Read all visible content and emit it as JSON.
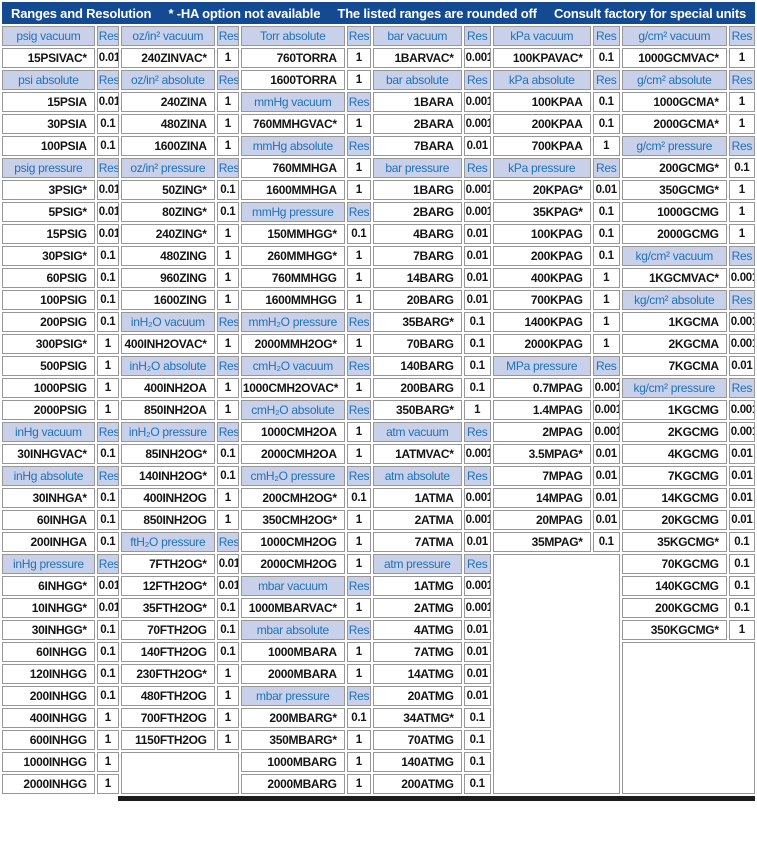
{
  "banner": {
    "items": [
      "Ranges and Resolution",
      "* -HA option not available",
      "The listed ranges are rounded off",
      "Consult factory for special units"
    ]
  },
  "colors": {
    "banner-bg": "#134a91",
    "banner-fg": "#ffffff",
    "hdr-bg": "#c9d0ea",
    "hdr-fg": "#1d72b8",
    "cell-fg": "#141414",
    "grid": "#979797"
  },
  "table": {
    "res_label": "Res",
    "row_count": 35,
    "columns": [
      {
        "group": "psi-inHg",
        "cells": [
          [
            "h",
            "psig vacuum"
          ],
          [
            "d",
            "15PSIVAC*",
            "0.01"
          ],
          [
            "h",
            "psi absolute"
          ],
          [
            "d",
            "15PSIA",
            "0.01"
          ],
          [
            "d",
            "30PSIA",
            "0.1"
          ],
          [
            "d",
            "100PSIA",
            "0.1"
          ],
          [
            "h",
            "psig pressure"
          ],
          [
            "d",
            "3PSIG*",
            "0.01"
          ],
          [
            "d",
            "5PSIG*",
            "0.01"
          ],
          [
            "d",
            "15PSIG",
            "0.01"
          ],
          [
            "d",
            "30PSIG*",
            "0.1"
          ],
          [
            "d",
            "60PSIG",
            "0.1"
          ],
          [
            "d",
            "100PSIG",
            "0.1"
          ],
          [
            "d",
            "200PSIG",
            "0.1"
          ],
          [
            "d",
            "300PSIG*",
            "1"
          ],
          [
            "d",
            "500PSIG",
            "1"
          ],
          [
            "d",
            "1000PSIG",
            "1"
          ],
          [
            "d",
            "2000PSIG",
            "1"
          ],
          [
            "h",
            "inHg vacuum"
          ],
          [
            "d",
            "30INHGVAC*",
            "0.1"
          ],
          [
            "h",
            "inHg absolute"
          ],
          [
            "d",
            "30INHGA*",
            "0.1"
          ],
          [
            "d",
            "60INHGA",
            "0.1"
          ],
          [
            "d",
            "200INHGA",
            "0.1"
          ],
          [
            "h",
            "inHg pressure"
          ],
          [
            "d",
            "6INHGG*",
            "0.01"
          ],
          [
            "d",
            "10INHGG*",
            "0.01"
          ],
          [
            "d",
            "30INHGG*",
            "0.1"
          ],
          [
            "d",
            "60INHGG",
            "0.1"
          ],
          [
            "d",
            "120INHGG",
            "0.1"
          ],
          [
            "d",
            "200INHGG",
            "0.1"
          ],
          [
            "d",
            "400INHGG",
            "1"
          ],
          [
            "d",
            "600INHGG",
            "1"
          ],
          [
            "d",
            "1000INHGG",
            "1"
          ],
          [
            "d",
            "2000INHGG",
            "1"
          ]
        ]
      },
      {
        "group": "ozin2-inH2O-ftH2O",
        "cells": [
          [
            "h",
            "oz/in² vacuum"
          ],
          [
            "d",
            "240ZINVAC*",
            "1"
          ],
          [
            "h",
            "oz/in² absolute"
          ],
          [
            "d",
            "240ZINA",
            "1"
          ],
          [
            "d",
            "480ZINA",
            "1"
          ],
          [
            "d",
            "1600ZINA",
            "1"
          ],
          [
            "h",
            "oz/in² pressure"
          ],
          [
            "d",
            "50ZING*",
            "0.1"
          ],
          [
            "d",
            "80ZING*",
            "0.1"
          ],
          [
            "d",
            "240ZING*",
            "1"
          ],
          [
            "d",
            "480ZING",
            "1"
          ],
          [
            "d",
            "960ZING",
            "1"
          ],
          [
            "d",
            "1600ZING",
            "1"
          ],
          [
            "h",
            "inH₂O vacuum"
          ],
          [
            "d",
            "400INH2OVAC*",
            "1"
          ],
          [
            "h",
            "inH₂O absolute"
          ],
          [
            "d",
            "400INH2OA",
            "1"
          ],
          [
            "d",
            "850INH2OA",
            "1"
          ],
          [
            "h",
            "inH₂O pressure"
          ],
          [
            "d",
            "85INH2OG*",
            "0.1"
          ],
          [
            "d",
            "140INH2OG*",
            "0.1"
          ],
          [
            "d",
            "400INH2OG",
            "1"
          ],
          [
            "d",
            "850INH2OG",
            "1"
          ],
          [
            "h",
            "ftH₂O pressure"
          ],
          [
            "d",
            "7FTH2OG*",
            "0.01"
          ],
          [
            "d",
            "12FTH2OG*",
            "0.01"
          ],
          [
            "d",
            "35FTH2OG*",
            "0.1"
          ],
          [
            "d",
            "70FTH2OG",
            "0.1"
          ],
          [
            "d",
            "140FTH2OG",
            "0.1"
          ],
          [
            "d",
            "230FTH2OG*",
            "1"
          ],
          [
            "d",
            "480FTH2OG",
            "1"
          ],
          [
            "d",
            "700FTH2OG",
            "1"
          ],
          [
            "d",
            "1150FTH2OG",
            "1"
          ]
        ]
      },
      {
        "group": "torr-mmHg-mmH2O-cmH2O-mbar",
        "cells": [
          [
            "h",
            "Torr absolute"
          ],
          [
            "d",
            "760TORRA",
            "1"
          ],
          [
            "d",
            "1600TORRA",
            "1"
          ],
          [
            "h",
            "mmHg vacuum"
          ],
          [
            "d",
            "760MMHGVAC*",
            "1"
          ],
          [
            "h",
            "mmHg absolute"
          ],
          [
            "d",
            "760MMHGA",
            "1"
          ],
          [
            "d",
            "1600MMHGA",
            "1"
          ],
          [
            "h",
            "mmHg pressure"
          ],
          [
            "d",
            "150MMHGG*",
            "0.1"
          ],
          [
            "d",
            "260MMHGG*",
            "1"
          ],
          [
            "d",
            "760MMHGG",
            "1"
          ],
          [
            "d",
            "1600MMHGG",
            "1"
          ],
          [
            "h",
            "mmH₂O pressure"
          ],
          [
            "d",
            "2000MMH2OG*",
            "1"
          ],
          [
            "h",
            "cmH₂O vacuum"
          ],
          [
            "d",
            "1000CMH2OVAC*",
            "1"
          ],
          [
            "h",
            "cmH₂O absolute"
          ],
          [
            "d",
            "1000CMH2OA",
            "1"
          ],
          [
            "d",
            "2000CMH2OA",
            "1"
          ],
          [
            "h",
            "cmH₂O pressure"
          ],
          [
            "d",
            "200CMH2OG*",
            "0.1"
          ],
          [
            "d",
            "350CMH2OG*",
            "1"
          ],
          [
            "d",
            "1000CMH2OG",
            "1"
          ],
          [
            "d",
            "2000CMH2OG",
            "1"
          ],
          [
            "h",
            "mbar vacuum"
          ],
          [
            "d",
            "1000MBARVAC*",
            "1"
          ],
          [
            "h",
            "mbar absolute"
          ],
          [
            "d",
            "1000MBARA",
            "1"
          ],
          [
            "d",
            "2000MBARA",
            "1"
          ],
          [
            "h",
            "mbar pressure"
          ],
          [
            "d",
            "200MBARG*",
            "0.1"
          ],
          [
            "d",
            "350MBARG*",
            "1"
          ],
          [
            "d",
            "1000MBARG",
            "1"
          ],
          [
            "d",
            "2000MBARG",
            "1"
          ]
        ]
      },
      {
        "group": "bar-atm",
        "cells": [
          [
            "h",
            "bar vacuum"
          ],
          [
            "d",
            "1BARVAC*",
            "0.001"
          ],
          [
            "h",
            "bar absolute"
          ],
          [
            "d",
            "1BARA",
            "0.001"
          ],
          [
            "d",
            "2BARA",
            "0.001"
          ],
          [
            "d",
            "7BARA",
            "0.01"
          ],
          [
            "h",
            "bar pressure"
          ],
          [
            "d",
            "1BARG",
            "0.001"
          ],
          [
            "d",
            "2BARG",
            "0.001"
          ],
          [
            "d",
            "4BARG",
            "0.01"
          ],
          [
            "d",
            "7BARG",
            "0.01"
          ],
          [
            "d",
            "14BARG",
            "0.01"
          ],
          [
            "d",
            "20BARG",
            "0.01"
          ],
          [
            "d",
            "35BARG*",
            "0.1"
          ],
          [
            "d",
            "70BARG",
            "0.1"
          ],
          [
            "d",
            "140BARG",
            "0.1"
          ],
          [
            "d",
            "200BARG",
            "0.1"
          ],
          [
            "d",
            "350BARG*",
            "1"
          ],
          [
            "h",
            "atm vacuum"
          ],
          [
            "d",
            "1ATMVAC*",
            "0.001"
          ],
          [
            "h",
            "atm absolute"
          ],
          [
            "d",
            "1ATMA",
            "0.001"
          ],
          [
            "d",
            "2ATMA",
            "0.001"
          ],
          [
            "d",
            "7ATMA",
            "0.01"
          ],
          [
            "h",
            "atm pressure"
          ],
          [
            "d",
            "1ATMG",
            "0.001"
          ],
          [
            "d",
            "2ATMG",
            "0.001"
          ],
          [
            "d",
            "4ATMG",
            "0.01"
          ],
          [
            "d",
            "7ATMG",
            "0.01"
          ],
          [
            "d",
            "14ATMG",
            "0.01"
          ],
          [
            "d",
            "20ATMG",
            "0.01"
          ],
          [
            "d",
            "34ATMG*",
            "0.1"
          ],
          [
            "d",
            "70ATMG",
            "0.1"
          ],
          [
            "d",
            "140ATMG",
            "0.1"
          ],
          [
            "d",
            "200ATMG",
            "0.1"
          ]
        ]
      },
      {
        "group": "kPa-MPa",
        "cells": [
          [
            "h",
            "kPa vacuum"
          ],
          [
            "d",
            "100KPAVAC*",
            "0.1"
          ],
          [
            "h",
            "kPa absolute"
          ],
          [
            "d",
            "100KPAA",
            "0.1"
          ],
          [
            "d",
            "200KPAA",
            "0.1"
          ],
          [
            "d",
            "700KPAA",
            "1"
          ],
          [
            "h",
            "kPa pressure"
          ],
          [
            "d",
            "20KPAG*",
            "0.01"
          ],
          [
            "d",
            "35KPAG*",
            "0.1"
          ],
          [
            "d",
            "100KPAG",
            "0.1"
          ],
          [
            "d",
            "200KPAG",
            "0.1"
          ],
          [
            "d",
            "400KPAG",
            "1"
          ],
          [
            "d",
            "700KPAG",
            "1"
          ],
          [
            "d",
            "1400KPAG",
            "1"
          ],
          [
            "d",
            "2000KPAG",
            "1"
          ],
          [
            "h",
            "MPa pressure"
          ],
          [
            "d",
            "0.7MPAG",
            "0.001"
          ],
          [
            "d",
            "1.4MPAG",
            "0.001"
          ],
          [
            "d",
            "2MPAG",
            "0.001"
          ],
          [
            "d",
            "3.5MPAG*",
            "0.01"
          ],
          [
            "d",
            "7MPAG",
            "0.01"
          ],
          [
            "d",
            "14MPAG",
            "0.01"
          ],
          [
            "d",
            "20MPAG",
            "0.01"
          ],
          [
            "d",
            "35MPAG*",
            "0.1"
          ]
        ]
      },
      {
        "group": "gcm2-kgcm2",
        "cells": [
          [
            "h",
            "g/cm² vacuum"
          ],
          [
            "d",
            "1000GCMVAC*",
            "1"
          ],
          [
            "h",
            "g/cm² absolute"
          ],
          [
            "d",
            "1000GCMA*",
            "1"
          ],
          [
            "d",
            "2000GCMA*",
            "1"
          ],
          [
            "h",
            "g/cm² pressure"
          ],
          [
            "d",
            "200GCMG*",
            "0.1"
          ],
          [
            "d",
            "350GCMG*",
            "1"
          ],
          [
            "d",
            "1000GCMG",
            "1"
          ],
          [
            "d",
            "2000GCMG",
            "1"
          ],
          [
            "h",
            "kg/cm² vacuum"
          ],
          [
            "d",
            "1KGCMVAC*",
            "0.001"
          ],
          [
            "h",
            "kg/cm² absolute"
          ],
          [
            "d",
            "1KGCMA",
            "0.001"
          ],
          [
            "d",
            "2KGCMA",
            "0.001"
          ],
          [
            "d",
            "7KGCMA",
            "0.01"
          ],
          [
            "h",
            "kg/cm² pressure"
          ],
          [
            "d",
            "1KGCMG",
            "0.001"
          ],
          [
            "d",
            "2KGCMG",
            "0.001"
          ],
          [
            "d",
            "4KGCMG",
            "0.01"
          ],
          [
            "d",
            "7KGCMG",
            "0.01"
          ],
          [
            "d",
            "14KGCMG",
            "0.01"
          ],
          [
            "d",
            "20KGCMG",
            "0.01"
          ],
          [
            "d",
            "35KGCMG*",
            "0.1"
          ],
          [
            "d",
            "70KGCMG",
            "0.1"
          ],
          [
            "d",
            "140KGCMG",
            "0.1"
          ],
          [
            "d",
            "200KGCMG",
            "0.1"
          ],
          [
            "d",
            "350KGCMG*",
            "1"
          ]
        ]
      }
    ]
  }
}
